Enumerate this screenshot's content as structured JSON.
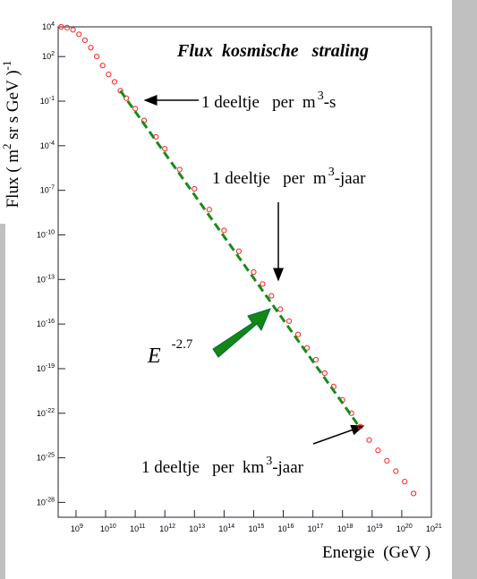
{
  "chart_data": {
    "type": "scatter",
    "title": "Flux  kosmische   straling",
    "x_label": "Energie  (GeV )",
    "y_label": {
      "text": "Flux ( m",
      "sup": "2",
      "after": " sr s GeV )",
      "sup2": "-1"
    },
    "xlog": true,
    "ylog": true,
    "xlim": [
      250000000.0,
      1e+21
    ],
    "ylim": [
      1e-29,
      10000.0
    ],
    "xticks": [
      {
        "value": 1000000000.0,
        "label": "10^9"
      },
      {
        "value": 10000000000.0,
        "label": "10^10"
      },
      {
        "value": 100000000000.0,
        "label": "10^11"
      },
      {
        "value": 1000000000000.0,
        "label": "10^12"
      },
      {
        "value": 10000000000000.0,
        "label": "10^13"
      },
      {
        "value": 100000000000000.0,
        "label": "10^14"
      },
      {
        "value": 1000000000000000.0,
        "label": "10^15"
      },
      {
        "value": 1e+16,
        "label": "10^16"
      },
      {
        "value": 1e+17,
        "label": "10^17"
      },
      {
        "value": 1e+18,
        "label": "10^18"
      },
      {
        "value": 1e+19,
        "label": "10^19"
      },
      {
        "value": 1e+20,
        "label": "10^20"
      },
      {
        "value": 1e+21,
        "label": "10^21"
      }
    ],
    "yticks": [
      {
        "value": 10000.0,
        "label": "10^4"
      },
      {
        "value": 100.0,
        "label": "10^2"
      },
      {
        "value": 0.1,
        "label": "10^-1"
      },
      {
        "value": 0.0001,
        "label": "10^-4"
      },
      {
        "value": 1e-07,
        "label": "10^-7"
      },
      {
        "value": 1e-10,
        "label": "10^-10"
      },
      {
        "value": 1e-13,
        "label": "10^-13"
      },
      {
        "value": 1e-16,
        "label": "10^-16"
      },
      {
        "value": 1e-19,
        "label": "10^-19"
      },
      {
        "value": 1e-22,
        "label": "10^-22"
      },
      {
        "value": 1e-25,
        "label": "10^-25"
      },
      {
        "value": 1e-28,
        "label": "10^-28"
      }
    ],
    "series": [
      {
        "color": "#ff2020",
        "x": [
          316000000.0,
          501000000.0,
          794000000.0,
          1260000000.0,
          2000000000.0,
          3160000000.0,
          5010000000.0,
          7940000000.0,
          12600000000.0,
          20000000000.0,
          31600000000.0,
          50100000000.0,
          100000000000.0,
          200000000000.0,
          501000000000.0,
          1000000000000.0,
          3160000000000.0,
          10000000000000.0,
          31600000000000.0,
          100000000000000.0,
          316000000000000.0,
          1000000000000000.0,
          2000000000000000.0,
          3980000000000000.0,
          7940000000000000.0,
          1.58e+16,
          3.16e+16,
          6.31e+16,
          1.26e+17,
          2.51e+17,
          5.01e+17,
          1e+18,
          2e+18,
          3.98e+18,
          7.94e+18,
          1.58e+19,
          3.16e+19,
          6.31e+19,
          1.26e+20,
          2.51e+20
        ],
        "values": [
          10000.0,
          8910.0,
          6310.0,
          3160.0,
          1260.0,
          398,
          100,
          25.1,
          6.31,
          2.0,
          0.501,
          0.158,
          0.0316,
          0.00501,
          0.000398,
          6.31e-05,
          2.51e-06,
          1.26e-07,
          5.01e-09,
          2e-10,
          7.94e-12,
          3.16e-13,
          5.01e-14,
          7.94e-15,
          1e-15,
          1.58e-16,
          2e-17,
          2.51e-18,
          3.98e-19,
          5.01e-20,
          6.31e-21,
          7.94e-22,
          1e-22,
          1.26e-23,
          1.58e-24,
          3.16e-25,
          6.31e-26,
          1.26e-26,
          2.51e-27,
          3.98e-28
        ]
      },
      {
        "type": "line",
        "color": "#1a8a1a",
        "x": [
          31600000000.0,
          3.98e+18
        ],
        "values": [
          0.501,
          1e-23
        ]
      }
    ],
    "annotations": [
      {
        "text": "1 deeltje   per  m",
        "sup": "3",
        "after": "-s"
      },
      {
        "text": "1 deeltje   per  m",
        "sup": "3",
        "after": "-jaar"
      },
      {
        "text": "1 deeltje   per  km",
        "sup": "3",
        "after": "-jaar"
      },
      {
        "text": "E",
        "sup": "-2.7"
      }
    ]
  }
}
